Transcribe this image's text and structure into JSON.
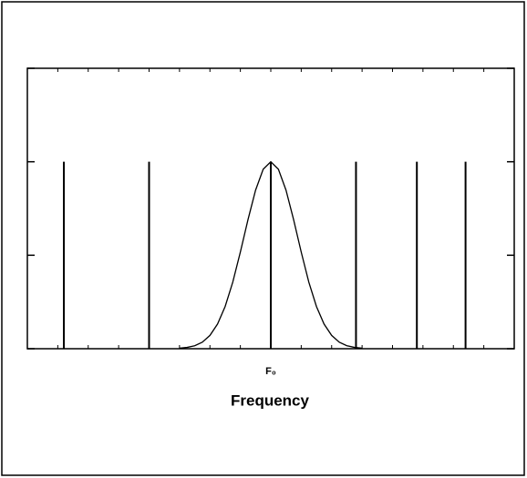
{
  "chart_data": {
    "type": "line",
    "x_label": "Frequency",
    "xlim": [
      0,
      16
    ],
    "ylim": [
      0,
      1.5
    ],
    "xticks": [
      {
        "value": 8,
        "label": "F₀"
      }
    ],
    "minor_xticks": [
      0,
      1,
      2,
      3,
      4,
      5,
      6,
      7,
      8,
      9,
      10,
      11,
      12,
      13,
      14,
      15,
      16
    ],
    "yticks": [
      0,
      0.5,
      1,
      1.5
    ],
    "color": "#000000",
    "series": [
      {
        "kind": "stem",
        "x": [
          1.2,
          4,
          8,
          10.8,
          12.8,
          14.4
        ],
        "values": [
          1,
          1,
          1,
          1,
          1,
          1
        ]
      },
      {
        "kind": "curve",
        "x": [
          5,
          5.25,
          5.5,
          5.75,
          6,
          6.25,
          6.5,
          6.75,
          7,
          7.25,
          7.5,
          7.75,
          8,
          8.25,
          8.5,
          8.75,
          9,
          9.25,
          9.5,
          9.75,
          10,
          10.25,
          10.5,
          10.75,
          11
        ],
        "values": [
          0.003,
          0.007,
          0.016,
          0.035,
          0.071,
          0.132,
          0.226,
          0.356,
          0.517,
          0.69,
          0.848,
          0.96,
          1,
          0.96,
          0.848,
          0.69,
          0.517,
          0.356,
          0.226,
          0.132,
          0.071,
          0.035,
          0.016,
          0.007,
          0.003
        ]
      }
    ]
  }
}
